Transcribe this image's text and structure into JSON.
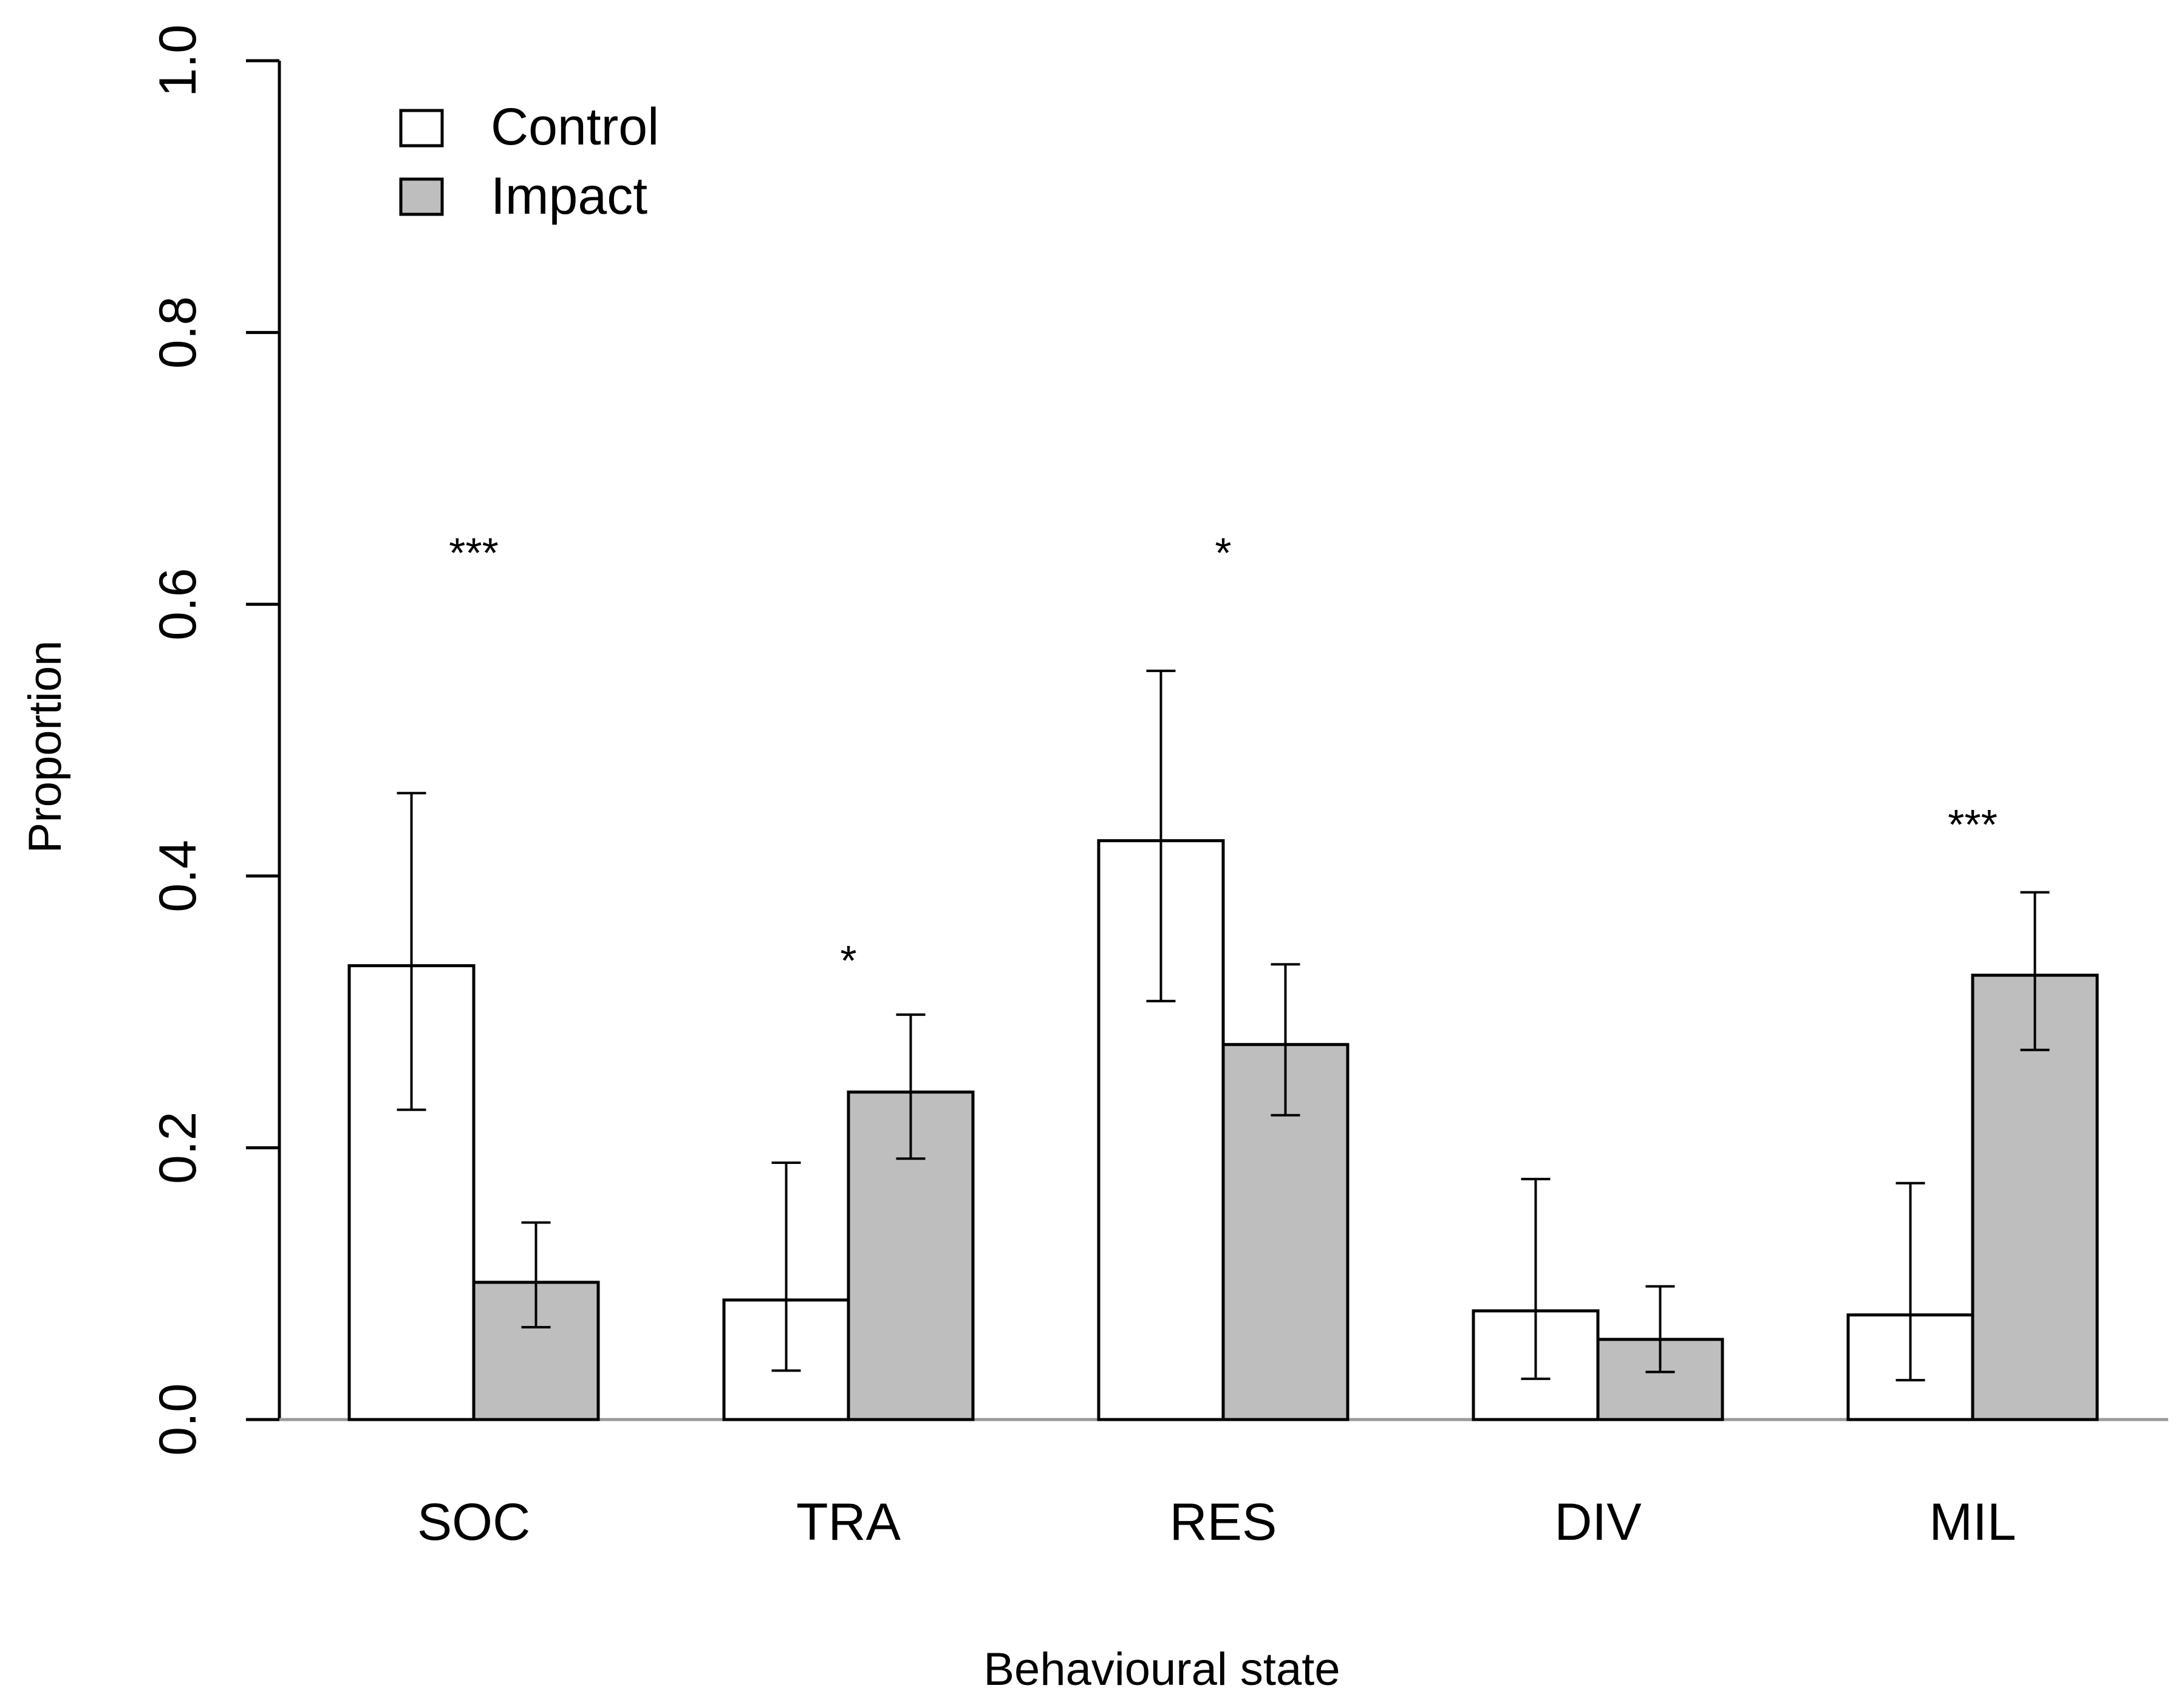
{
  "chart_data": {
    "type": "bar",
    "title": "",
    "xlabel": "Behavioural state",
    "ylabel": "Proportion",
    "ylim": [
      0,
      1
    ],
    "yticks": [
      "0.0",
      "0.2",
      "0.4",
      "0.6",
      "0.8",
      "1.0"
    ],
    "categories": [
      "SOC",
      "TRA",
      "RES",
      "DIV",
      "MIL"
    ],
    "series": [
      {
        "name": "Control",
        "color": "#ffffff",
        "values": [
          0.334,
          0.088,
          0.426,
          0.08,
          0.077
        ],
        "lower": [
          0.228,
          0.036,
          0.308,
          0.03,
          0.029
        ],
        "upper": [
          0.461,
          0.189,
          0.551,
          0.177,
          0.174
        ]
      },
      {
        "name": "Impact",
        "color": "#bebebe",
        "values": [
          0.101,
          0.241,
          0.276,
          0.059,
          0.327
        ],
        "lower": [
          0.068,
          0.192,
          0.224,
          0.035,
          0.272
        ],
        "upper": [
          0.145,
          0.298,
          0.335,
          0.098,
          0.388
        ]
      }
    ],
    "annotations": [
      {
        "category": "SOC",
        "text": "***",
        "y": 0.645
      },
      {
        "category": "TRA",
        "text": "*",
        "y": 0.345
      },
      {
        "category": "RES",
        "text": "*",
        "y": 0.645
      },
      {
        "category": "MIL",
        "text": "***",
        "y": 0.445
      }
    ],
    "legend_position": "top-left",
    "grid": false
  }
}
